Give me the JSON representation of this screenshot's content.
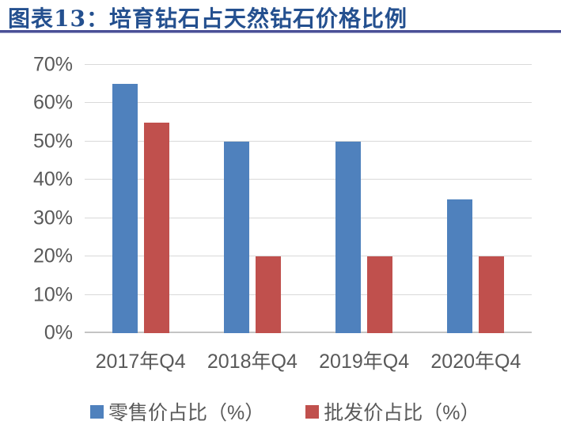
{
  "header": {
    "title": "图表13：培育钻石占天然钻石价格比例"
  },
  "colors": {
    "title_text": "#24508F",
    "title_rule": "#4A5096",
    "axis_text": "#595959",
    "gridline": "#D9D9D9",
    "baseline": "#C4C4C4",
    "series_blue": "#4F81BD",
    "series_red": "#C0504D",
    "background": "#FFFFFF"
  },
  "chart_data": {
    "type": "bar",
    "title": "图表13：培育钻石占天然钻石价格比例",
    "categories": [
      "2017年Q4",
      "2018年Q4",
      "2019年Q4",
      "2020年Q4"
    ],
    "series": [
      {
        "name": "零售价占比（%）",
        "color": "#4F81BD",
        "values": [
          65,
          50,
          50,
          35
        ]
      },
      {
        "name": "批发价占比（%）",
        "color": "#C0504D",
        "values": [
          55,
          20,
          20,
          20
        ]
      }
    ],
    "xlabel": "",
    "ylabel": "",
    "ylim": [
      0,
      70
    ],
    "yticks": [
      0,
      10,
      20,
      30,
      40,
      50,
      60,
      70
    ],
    "ytick_suffix": "%",
    "grid": "horizontal",
    "legend_position": "bottom"
  }
}
